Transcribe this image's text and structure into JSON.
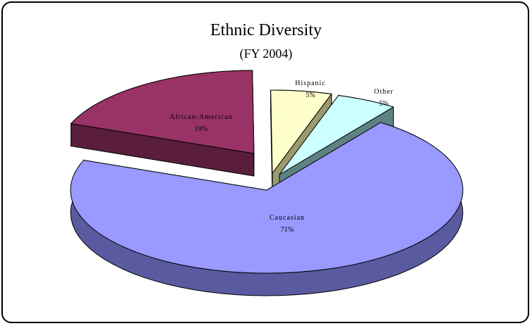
{
  "chart_data": {
    "type": "pie",
    "title": "Ethnic Diversity",
    "subtitle": "(FY 2004)",
    "slices": [
      {
        "label": "Caucasian",
        "percent_label": "71%",
        "value": 71,
        "color": "#9999ff",
        "side_color": "#5a5aa0"
      },
      {
        "label": "African-American",
        "percent_label": "19%",
        "value": 19,
        "color": "#993366",
        "side_color": "#5a1e3c"
      },
      {
        "label": "Hispanic",
        "percent_label": "5%",
        "value": 5,
        "color": "#ffffcc",
        "side_color": "#9a9a6e"
      },
      {
        "label": "Other",
        "percent_label": "5%",
        "value": 5,
        "color": "#ccffff",
        "side_color": "#5e8282"
      }
    ],
    "exploded": true,
    "three_d": true,
    "legend": "none"
  }
}
